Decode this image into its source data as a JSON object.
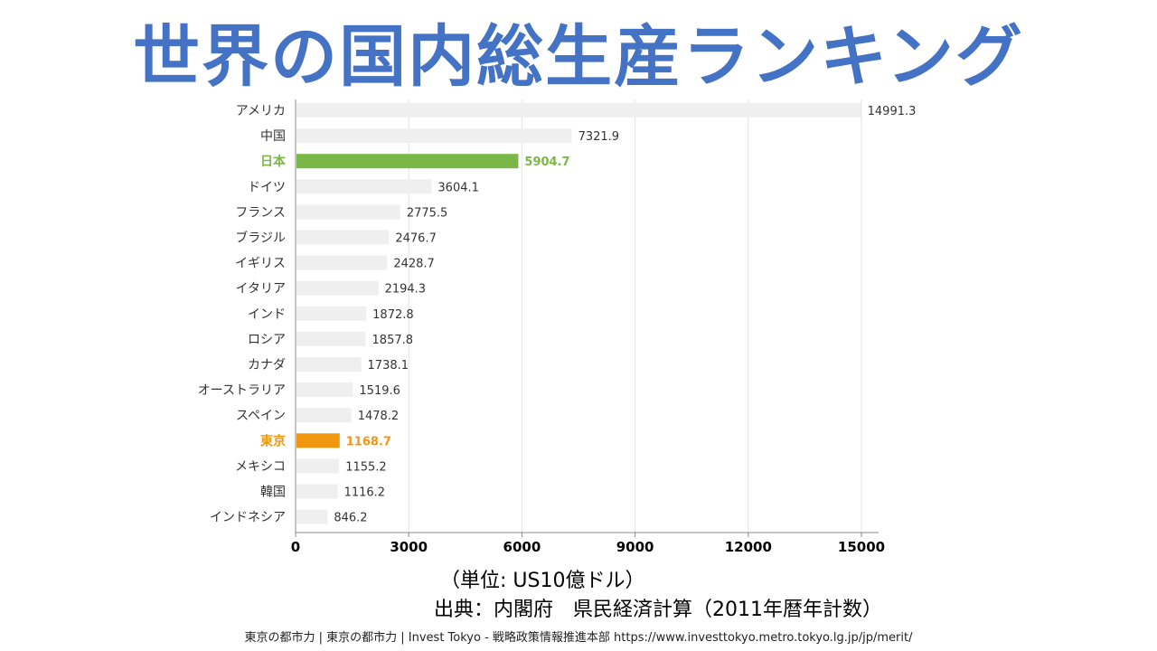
{
  "title": "世界の国内総生産ランキング",
  "unit_note": "（単位: US10億ドル）",
  "source_note": "出典：内閣府　県民経済計算（2011年暦年計数）",
  "footer": "東京の都市力 | 東京の都市力 | Invest Tokyo - 戦略政策情報推進本部 https://www.investtokyo.metro.tokyo.lg.jp/jp/merit/",
  "chart_data": {
    "type": "bar",
    "orientation": "horizontal",
    "categories": [
      "アメリカ",
      "中国",
      "日本",
      "ドイツ",
      "フランス",
      "ブラジル",
      "イギリス",
      "イタリア",
      "インド",
      "ロシア",
      "カナダ",
      "オーストラリア",
      "スペイン",
      "東京",
      "メキシコ",
      "韓国",
      "インドネシア"
    ],
    "values": [
      14991.3,
      7321.9,
      5904.7,
      3604.1,
      2775.5,
      2476.7,
      2428.7,
      2194.3,
      1872.8,
      1857.8,
      1738.1,
      1519.6,
      1478.2,
      1168.7,
      1155.2,
      1116.2,
      846.2
    ],
    "value_labels": [
      "14991.3",
      "7321.9",
      "5904.7",
      "3604.1",
      "2775.5",
      "2476.7",
      "2428.7",
      "2194.3",
      "1872.8",
      "1857.8",
      "1738.1",
      "1519.6",
      "1478.2",
      "1168.7",
      "1155.2",
      "1116.2",
      "846.2"
    ],
    "xlim": [
      0,
      15000
    ],
    "xticks": [
      0,
      3000,
      6000,
      9000,
      12000,
      15000
    ],
    "xtick_labels": [
      "0",
      "3000",
      "6000",
      "9000",
      "12000",
      "15000"
    ],
    "grid": true,
    "bar_color": "#efefef",
    "highlights": [
      {
        "category": "日本",
        "color": "#7ab648"
      },
      {
        "category": "東京",
        "color": "#f0960f"
      }
    ],
    "label_color": "#333333"
  }
}
